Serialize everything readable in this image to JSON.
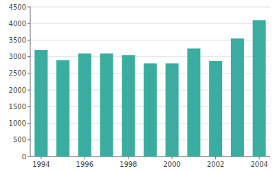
{
  "chart_data": {
    "type": "bar",
    "categories": [
      "1994",
      null,
      "1996",
      null,
      "1998",
      null,
      "2000",
      null,
      "2002",
      null,
      "2004"
    ],
    "values": [
      3200,
      2900,
      3100,
      3100,
      3050,
      2800,
      2800,
      3250,
      2870,
      3550,
      4100
    ],
    "color": "#3aada0",
    "ylim": [
      0,
      4500
    ],
    "yticks": [
      0,
      500,
      1000,
      1500,
      2000,
      2500,
      3000,
      3500,
      4000,
      4500
    ],
    "grid": true
  }
}
